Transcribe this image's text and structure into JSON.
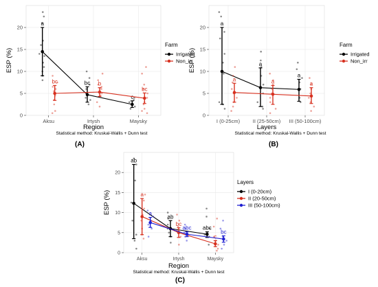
{
  "chart_data": [
    {
      "type": "scatter",
      "panel_label": "(A)",
      "xlabel": "Region",
      "ylabel": "ESP (%)",
      "caption": "Statistical method: Kruskal-Wallis + Dunn test",
      "categories": [
        "Aksu",
        "Irtysh",
        "Maysky"
      ],
      "ylim": [
        0,
        25
      ],
      "yticks": [
        0,
        5,
        10,
        15,
        20
      ],
      "legend": {
        "title": "Farm",
        "position": "right"
      },
      "series": [
        {
          "name": "Irrigated",
          "color": "#000000",
          "means": [
            14.5,
            4.7,
            2.5
          ],
          "lower": [
            9.0,
            3.0,
            1.8
          ],
          "upper": [
            20.0,
            6.5,
            3.3
          ],
          "letters": [
            "a",
            "bc",
            "c"
          ],
          "points": [
            [
              22.5,
              23.5,
              21.0,
              16.0,
              13.5,
              11.0,
              10.0,
              9.0,
              8.0,
              14.0,
              17.0,
              12.0
            ],
            [
              10.0,
              8.5,
              6.0,
              5.0,
              4.0,
              3.5,
              2.5,
              7.0
            ],
            [
              4.0,
              3.0,
              2.5,
              2.0,
              1.5,
              3.5
            ]
          ]
        },
        {
          "name": "Non_irr",
          "color": "#d7301f",
          "means": [
            5.0,
            5.3,
            3.9
          ],
          "lower": [
            3.4,
            4.3,
            2.7
          ],
          "upper": [
            6.8,
            6.3,
            5.1
          ],
          "letters": [
            "bc",
            "b",
            "bc"
          ],
          "points": [
            [
              9.0,
              7.5,
              6.5,
              5.5,
              4.5,
              3.5,
              2.5,
              1.0,
              0.5,
              6.0
            ],
            [
              9.5,
              8.0,
              7.0,
              6.0,
              5.0,
              4.5,
              3.0,
              2.0,
              6.5
            ],
            [
              11.0,
              9.5,
              7.0,
              5.0,
              4.0,
              3.0,
              2.5,
              1.5,
              1.0,
              0.5,
              6.0
            ]
          ]
        }
      ]
    },
    {
      "type": "scatter",
      "panel_label": "(B)",
      "xlabel": "Layers",
      "ylabel": "ESP (%)",
      "caption": "Statistical method: Kruskal-Wallis + Dunn test",
      "categories": [
        "I (0-25cm)",
        "II (25-50cm)",
        "III (50-100cm)"
      ],
      "ylim": [
        0,
        25
      ],
      "yticks": [
        0,
        5,
        10,
        15,
        20
      ],
      "legend": {
        "title": "Farm",
        "position": "right"
      },
      "series": [
        {
          "name": "Irrigated",
          "color": "#000000",
          "means": [
            10.0,
            6.3,
            5.9
          ],
          "lower": [
            2.5,
            2.0,
            3.2
          ],
          "upper": [
            20.0,
            10.8,
            8.2
          ],
          "letters": [
            "a",
            "a",
            "a"
          ],
          "points": [
            [
              23.5,
              22.5,
              19.0,
              17.5,
              14.0,
              12.0,
              9.5,
              3.0,
              2.5,
              1.5
            ],
            [
              14.5,
              12.5,
              11.0,
              9.0,
              7.0,
              5.0,
              3.0,
              2.0,
              1.5
            ],
            [
              12.0,
              10.5,
              8.5,
              7.5,
              6.0,
              4.0,
              3.0
            ]
          ]
        },
        {
          "name": "Non_irr",
          "color": "#d7301f",
          "means": [
            5.2,
            4.8,
            4.4
          ],
          "lower": [
            3.0,
            2.5,
            2.7
          ],
          "upper": [
            7.3,
            6.8,
            6.3
          ],
          "letters": [
            "a",
            "a",
            "a"
          ],
          "points": [
            [
              11.0,
              9.0,
              7.5,
              6.0,
              5.0,
              4.0,
              3.0,
              2.0,
              1.0
            ],
            [
              9.5,
              8.0,
              7.0,
              6.0,
              5.0,
              4.0,
              3.0,
              1.5,
              0.5
            ],
            [
              8.5,
              7.0,
              6.0,
              5.0,
              4.0,
              3.0,
              2.0,
              1.0
            ]
          ]
        }
      ]
    },
    {
      "type": "scatter",
      "panel_label": "(C)",
      "xlabel": "Region",
      "ylabel": "ESP (%)",
      "caption": "Statistical method: Kruskal-Wallis + Dunn test",
      "categories": [
        "Aksu",
        "Irtysh",
        "Maysky"
      ],
      "ylim": [
        0,
        25
      ],
      "yticks": [
        0,
        5,
        10,
        15,
        20
      ],
      "legend": {
        "title": "Layers",
        "position": "right"
      },
      "series": [
        {
          "name": "I (0-20cm)",
          "color": "#000000",
          "means": [
            12.3,
            6.0,
            4.6
          ],
          "lower": [
            3.5,
            4.0,
            3.8
          ],
          "upper": [
            22.0,
            8.0,
            5.2
          ],
          "letters": [
            "ab",
            "ab",
            "abc"
          ],
          "points": [
            [
              23.5,
              22.0,
              18.0,
              12.5,
              8.0,
              4.5,
              3.0,
              1.0
            ],
            [
              10.0,
              8.5,
              7.0,
              6.0,
              5.0,
              4.0,
              2.5
            ],
            [
              11.0,
              9.0,
              6.0,
              4.5,
              4.0,
              2.0
            ]
          ]
        },
        {
          "name": "II (20-50cm)",
          "color": "#d7301f",
          "means": [
            9.0,
            5.0,
            2.2
          ],
          "lower": [
            4.5,
            3.8,
            1.5
          ],
          "upper": [
            13.5,
            6.2,
            3.0
          ],
          "letters": [
            "a",
            "bc",
            "c"
          ],
          "points": [
            [
              14.5,
              13.0,
              11.0,
              9.5,
              8.0,
              6.0,
              4.5,
              3.5
            ],
            [
              9.5,
              8.0,
              6.5,
              5.5,
              4.0,
              2.0
            ],
            [
              8.5,
              6.5,
              4.0,
              3.0,
              2.0,
              1.0,
              0.5
            ]
          ]
        },
        {
          "name": "III (50-100cm)",
          "color": "#1f1fd1",
          "means": [
            7.5,
            4.6,
            3.4
          ],
          "lower": [
            6.3,
            4.0,
            2.6
          ],
          "upper": [
            8.8,
            5.2,
            4.2
          ],
          "letters": [
            "a",
            "abc",
            "bc"
          ],
          "points": [
            [
              10.5,
              9.0,
              8.0,
              7.0,
              6.0,
              4.0
            ],
            [
              7.0,
              6.0,
              5.0,
              4.5,
              4.0,
              3.0
            ],
            [
              8.0,
              6.0,
              4.0,
              3.0,
              2.0,
              1.0
            ]
          ]
        }
      ]
    }
  ]
}
